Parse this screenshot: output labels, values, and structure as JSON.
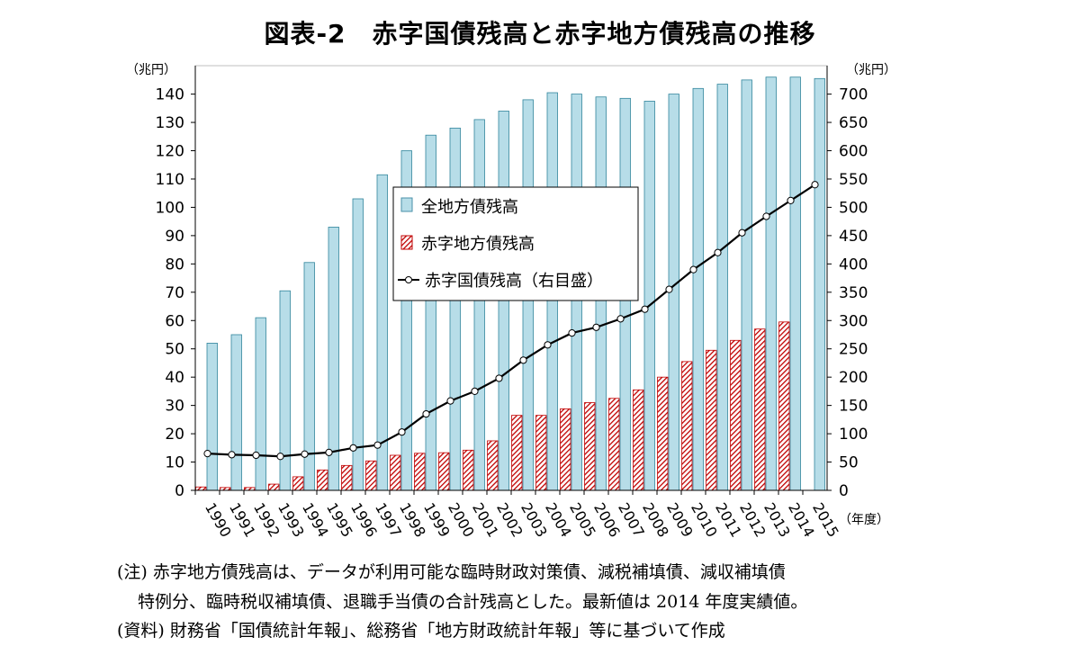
{
  "title": "図表-2　赤字国債残高と赤字地方債残高の推移",
  "chart_data": {
    "type": "bar",
    "categories": [
      "1990",
      "1991",
      "1992",
      "1993",
      "1994",
      "1995",
      "1996",
      "1997",
      "1998",
      "1999",
      "2000",
      "2001",
      "2002",
      "2003",
      "2004",
      "2005",
      "2006",
      "2007",
      "2008",
      "2009",
      "2010",
      "2011",
      "2012",
      "2013",
      "2014",
      "2015"
    ],
    "series": [
      {
        "name": "全地方債残高",
        "kind": "bar",
        "axis": "left",
        "color": "#b7dde8",
        "values": [
          52,
          55,
          61,
          70.5,
          80.5,
          93,
          103,
          111.5,
          120,
          125.5,
          128,
          131,
          134,
          138,
          140.5,
          140,
          139,
          138.5,
          137.5,
          140,
          142,
          143.5,
          145,
          146,
          146,
          145.5
        ]
      },
      {
        "name": "赤字地方債残高",
        "kind": "bar",
        "axis": "left",
        "color": "#c00000",
        "values": [
          1.2,
          1,
          1,
          2.2,
          4.8,
          7.2,
          8.8,
          10.4,
          12.4,
          13.1,
          13.3,
          14.2,
          17.5,
          26.5,
          26.5,
          28.8,
          31,
          32.5,
          35.5,
          40,
          45.5,
          49.5,
          53,
          57,
          59.5,
          null
        ]
      },
      {
        "name": "赤字国債残高（右目盛）",
        "kind": "line",
        "axis": "right",
        "color": "#000000",
        "values": [
          65,
          63,
          62,
          60,
          64,
          67,
          75,
          80,
          103,
          135,
          158,
          175,
          198,
          230,
          257,
          278,
          288,
          303,
          320,
          355,
          390,
          420,
          455,
          484,
          512,
          540
        ]
      }
    ],
    "y_left": {
      "unit": "（兆円）",
      "min": 0,
      "max": 140,
      "step": 10,
      "ylim": [
        0,
        150
      ]
    },
    "y_right": {
      "unit": "（兆円）",
      "min": 0,
      "max": 700,
      "step": 50,
      "ylim": [
        0,
        750
      ]
    },
    "x_unit": "（年度）",
    "legend_position": "upper-center"
  },
  "notes": {
    "line1": "(注) 赤字地方債残高は、データが利用可能な臨時財政対策債、減税補填債、減収補填債",
    "line2": "特例分、臨時税収補填債、退職手当債の合計残高とした。最新値は 2014 年度実績値。",
    "line3": "(資料) 財務省「国債統計年報」、総務省「地方財政統計年報」等に基づいて作成"
  }
}
